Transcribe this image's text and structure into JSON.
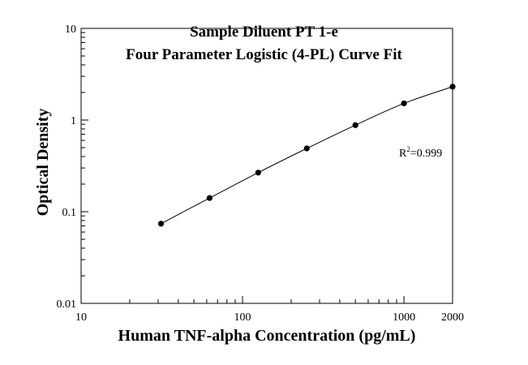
{
  "chart_data": {
    "type": "scatter",
    "title_lines": [
      "Sample Diluent PT 1-e",
      "Four Parameter Logistic (4-PL) Curve Fit"
    ],
    "xlabel": "Human TNF-alpha Concentration (pg/mL)",
    "ylabel": "Optical Density",
    "x_scale": "log",
    "y_scale": "log",
    "xlim": [
      10,
      2000
    ],
    "ylim": [
      0.01,
      10
    ],
    "x_ticks": [
      {
        "value": 10,
        "label": "10"
      },
      {
        "value": 100,
        "label": "100"
      },
      {
        "value": 1000,
        "label": "1000"
      },
      {
        "value": 2000,
        "label": "2000"
      }
    ],
    "y_ticks": [
      {
        "value": 0.01,
        "label": "0.01"
      },
      {
        "value": 0.1,
        "label": "0.1"
      },
      {
        "value": 1,
        "label": "1"
      },
      {
        "value": 10,
        "label": "10"
      }
    ],
    "grid": false,
    "series": [
      {
        "x": [
          31.25,
          62.5,
          125,
          250,
          500,
          1000,
          2000
        ],
        "y": [
          0.074,
          0.141,
          0.267,
          0.49,
          0.88,
          1.52,
          2.31
        ],
        "fit": "4-PL",
        "color": "#000000"
      }
    ],
    "annotation": {
      "prefix": "R",
      "sup": "2",
      "suffix": "=0.999"
    }
  }
}
